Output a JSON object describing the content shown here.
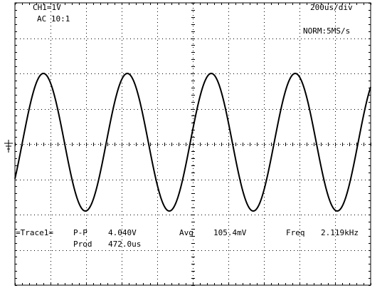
{
  "channel": {
    "setting": "CH1=1V",
    "coupling": "AC 10:1"
  },
  "timebase": {
    "setting": "200us/div",
    "mode": "NORM:5MS/s"
  },
  "measurements": {
    "trace_label": "=Trace1=",
    "pp": {
      "name": "P-P",
      "value": "4.040V"
    },
    "avg": {
      "name": "Avg",
      "value": "105.4mV"
    },
    "freq": {
      "name": "Freq",
      "value": "2.119kHz"
    },
    "prod": {
      "name": "Prod",
      "value": "472.0us"
    }
  },
  "waveform": {
    "type": "sine",
    "amplitude_div": 1.95,
    "offset_div": 0.05,
    "period_div": 2.36
  }
}
